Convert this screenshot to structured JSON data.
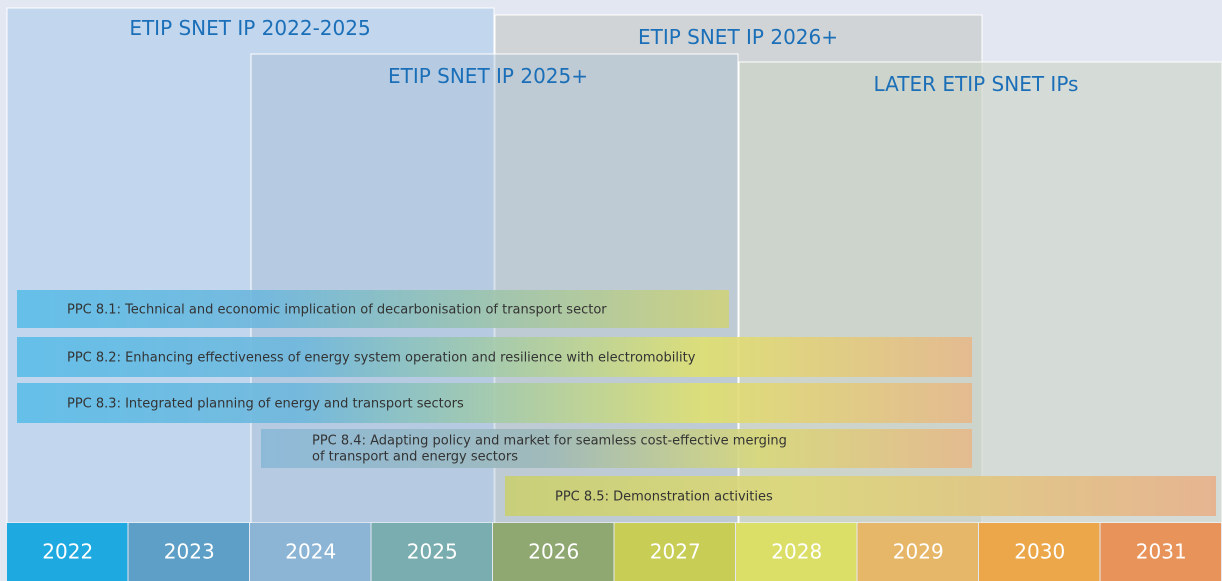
{
  "programmes": [
    {
      "label": "ETIP SNET IP 2022-2025"
    },
    {
      "label": "ETIP SNET IP 2026+"
    },
    {
      "label": "ETIP SNET IP 2025+"
    },
    {
      "label": "LATER ETIP SNET IPs"
    }
  ],
  "ppcs": [
    {
      "lines": [
        "PPC 8.1: Technical and economic implication of decarbonisation of transport sector"
      ]
    },
    {
      "lines": [
        "PPC 8.2: Enhancing effectiveness of energy system operation and resilience with electromobility"
      ]
    },
    {
      "lines": [
        "PPC 8.3: Integrated planning of energy and transport sectors"
      ]
    },
    {
      "lines": [
        "PPC 8.4: Adapting policy and market for seamless cost-effective merging",
        "of transport and energy sectors"
      ]
    },
    {
      "lines": [
        "PPC 8.5: Demonstration activities"
      ]
    }
  ],
  "years": [
    "2022",
    "2023",
    "2024",
    "2025",
    "2026",
    "2027",
    "2028",
    "2029",
    "2030",
    "2031"
  ]
}
